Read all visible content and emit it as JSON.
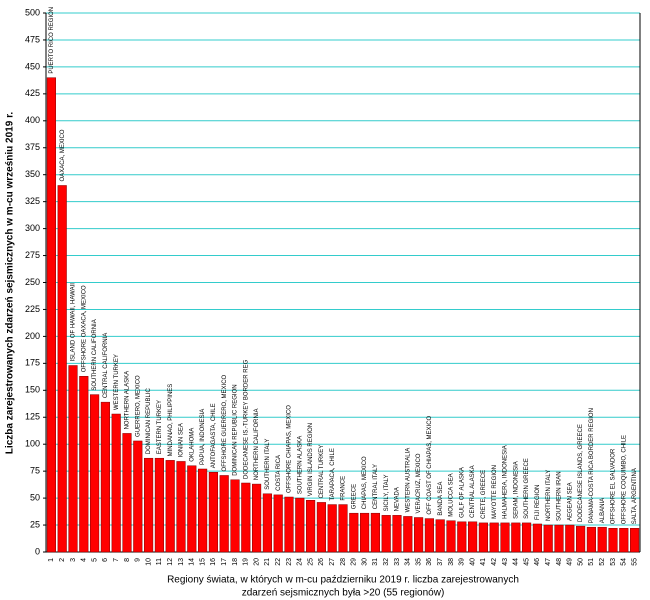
{
  "chart_data": {
    "type": "bar",
    "y_label": "Liczba zarejestrowanych zdarzeń sejsmicznych w m-cu wrześniu 2019 r.",
    "x_label": [
      "Regiony świata, w których w m-cu październiku 2019 r. liczba zarejestrowanych",
      "zdarzeń sejsmicznych była >20 (55 regionów)"
    ],
    "categories": [
      "1",
      "2",
      "3",
      "4",
      "5",
      "6",
      "7",
      "8",
      "9",
      "10",
      "11",
      "12",
      "13",
      "14",
      "15",
      "16",
      "17",
      "18",
      "19",
      "20",
      "21",
      "22",
      "23",
      "24",
      "25",
      "26",
      "27",
      "28",
      "29",
      "30",
      "31",
      "32",
      "33",
      "34",
      "35",
      "36",
      "37",
      "38",
      "39",
      "40",
      "41",
      "42",
      "43",
      "44",
      "45",
      "46",
      "47",
      "48",
      "49",
      "50",
      "51",
      "52",
      "53",
      "54",
      "55"
    ],
    "region_labels": [
      "PUERTO RICO REGION",
      "OAXACA, MEXICO",
      "ISLAND OF HAWAII, HAWAII",
      "OFFSHORE OAXACA, MEXICO",
      "SOUTHERN CALIFORNIA",
      "CENTRAL CALIFORNIA",
      "WESTERN TURKEY",
      "NORTHERN ALASKA",
      "GUERRERO, MEXICO",
      "DOMINICAN REPUBLIC",
      "EASTERN TURKEY",
      "MINDANAO, PHILIPPINES",
      "IONIAN SEA",
      "OKLAHOMA",
      "PAPUA, INDONESIA",
      "ANTOFAGASTA, CHILE",
      "OFFSHORE GUERRERO, MEXICO",
      "DOMINICAN REPUBLIC REGION",
      "DODECANESE IS.-TURKEY BORDER REG",
      "NORTHERN CALIFORNIA",
      "SOUTHERN ITALY",
      "COSTA RICA",
      "OFFSHORE CHIAPAS, MEXICO",
      "SOUTHERN ALASKA",
      "VIRGIN ISLANDS REGION",
      "CENTRAL TURKEY",
      "TARAPACA, CHILE",
      "FRANCE",
      "GREECE",
      "CHIAPAS, MEXICO",
      "CENTRAL ITALY",
      "SICILY, ITALY",
      "NEVADA",
      "WESTERN AUSTRALIA",
      "VERACRUZ, MEXICO",
      "OFF COAST OF CHIAPAS, MEXICO",
      "BANDA SEA",
      "MOLUCCA SEA",
      "GULF OF ALASKA",
      "CENTRAL ALASKA",
      "CRETE, GREECE",
      "MAYOTTE REGION",
      "HALMAHERA, INDONESIA",
      "SERAM, INDONESIA",
      "SOUTHERN GREECE",
      "FIJI REGION",
      "NORTHERN ITALY",
      "SOUTHERN IRAN",
      "AEGEAN SEA",
      "DODECANESE ISLANDS, GREECE",
      "PANAMA-COSTA RICA BORDER REGION",
      "ALBANIA",
      "OFFSHORE EL SALVADOR",
      "OFFSHORE COQUIMBO, CHILE",
      "SALTA, ARGENTINA"
    ],
    "values": [
      440,
      340,
      173,
      163,
      146,
      139,
      128,
      110,
      103,
      87,
      87,
      85,
      84,
      80,
      77,
      74,
      71,
      67,
      64,
      63,
      54,
      53,
      51,
      50,
      48,
      46,
      44,
      44,
      36,
      36,
      36,
      34,
      34,
      33,
      32,
      31,
      30,
      29,
      28,
      28,
      27,
      27,
      27,
      27,
      27,
      26,
      25,
      25,
      25,
      24,
      23,
      23,
      22,
      22,
      22
    ],
    "color": "#ff0000",
    "grid_color": "#33cccc",
    "ylim": [
      0,
      500
    ],
    "yticks": [
      0,
      25,
      50,
      75,
      100,
      125,
      150,
      175,
      200,
      225,
      250,
      275,
      300,
      325,
      350,
      375,
      400,
      425,
      450,
      475,
      500
    ],
    "grid": true
  }
}
